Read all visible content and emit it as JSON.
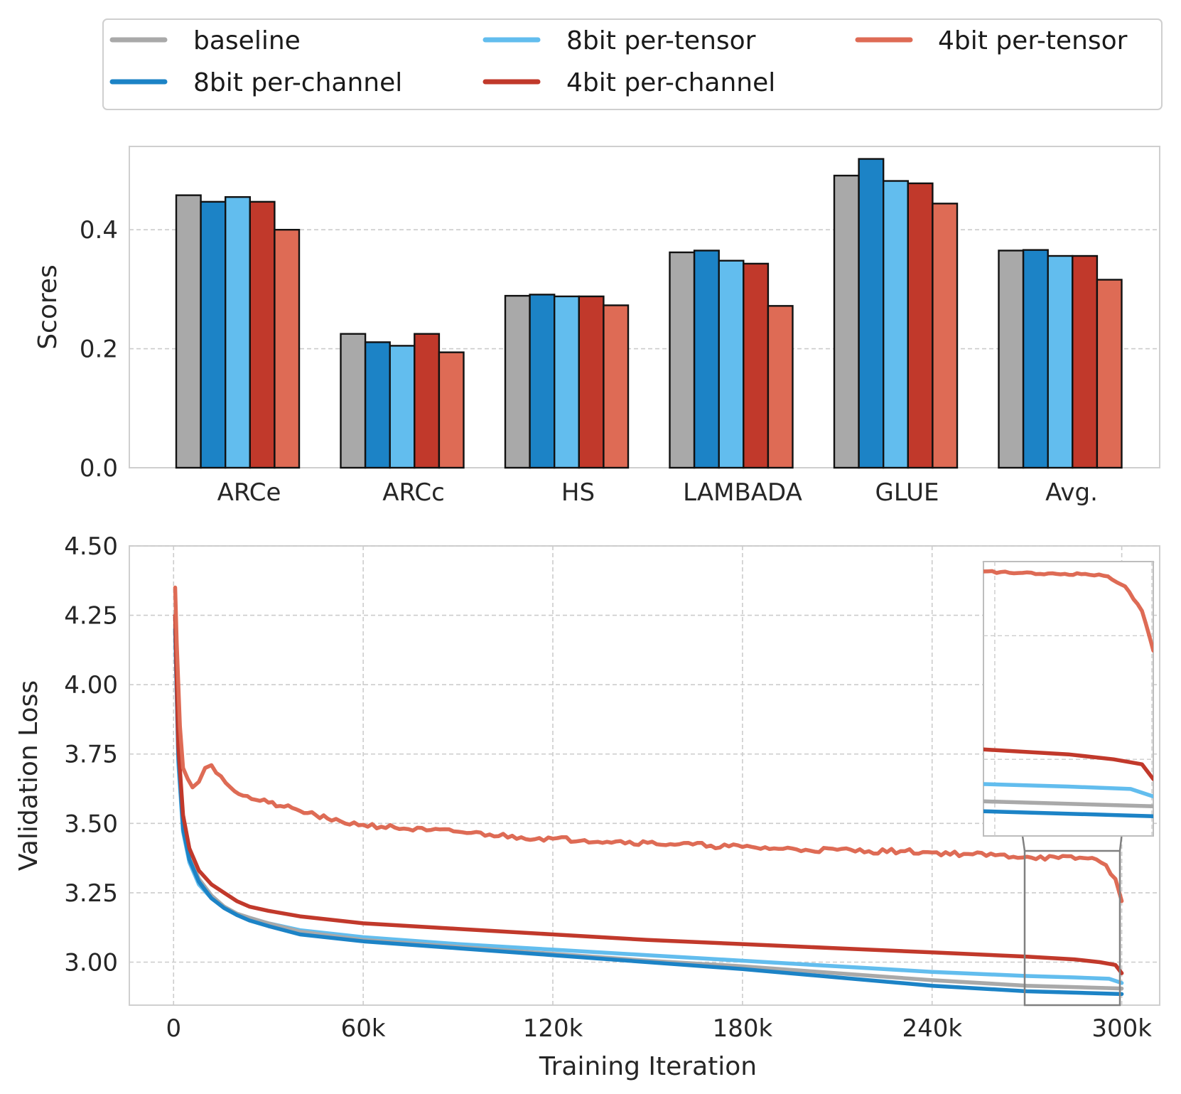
{
  "legend": {
    "items": [
      {
        "label": "baseline",
        "color": "#a9a9a9"
      },
      {
        "label": "8bit per-tensor",
        "color": "#62bdee"
      },
      {
        "label": "4bit per-tensor",
        "color": "#de6b55"
      },
      {
        "label": "8bit per-channel",
        "color": "#1c83c6"
      },
      {
        "label": "4bit per-channel",
        "color": "#c1392b"
      }
    ]
  },
  "chart_data": [
    {
      "type": "bar",
      "ylabel": "Scores",
      "xlabel": "",
      "ylim": [
        0,
        0.54
      ],
      "yticks": [
        "0.0",
        "0.2",
        "0.4"
      ],
      "grid": true,
      "categories": [
        "ARCe",
        "ARCc",
        "HS",
        "LAMBADA",
        "GLUE",
        "Avg."
      ],
      "series": [
        {
          "name": "baseline",
          "color": "#a9a9a9",
          "values": [
            0.458,
            0.225,
            0.289,
            0.362,
            0.491,
            0.365
          ]
        },
        {
          "name": "8bit per-channel",
          "color": "#1c83c6",
          "values": [
            0.447,
            0.211,
            0.291,
            0.365,
            0.519,
            0.366
          ]
        },
        {
          "name": "8bit per-tensor",
          "color": "#62bdee",
          "values": [
            0.455,
            0.205,
            0.288,
            0.348,
            0.482,
            0.356
          ]
        },
        {
          "name": "4bit per-channel",
          "color": "#c1392b",
          "values": [
            0.447,
            0.225,
            0.288,
            0.343,
            0.478,
            0.356
          ]
        },
        {
          "name": "4bit per-tensor",
          "color": "#de6b55",
          "values": [
            0.4,
            0.194,
            0.273,
            0.272,
            0.444,
            0.316
          ]
        }
      ]
    },
    {
      "type": "line",
      "xlabel": "Training Iteration",
      "ylabel": "Validation Loss",
      "xlim": [
        -14000,
        312000
      ],
      "ylim": [
        2.845,
        4.5
      ],
      "xticks": [
        0,
        60000,
        120000,
        180000,
        240000,
        300000
      ],
      "xticklabels": [
        "0",
        "60k",
        "120k",
        "180k",
        "240k",
        "300k"
      ],
      "yticks": [
        3.0,
        3.25,
        3.5,
        3.75,
        4.0,
        4.25,
        4.5
      ],
      "yticklabels": [
        "3.00",
        "3.25",
        "3.50",
        "3.75",
        "4.00",
        "4.25",
        "4.50"
      ],
      "grid": true,
      "series": [
        {
          "name": "baseline",
          "color": "#a9a9a9",
          "x": [
            500,
            1500,
            3000,
            5000,
            8000,
            12000,
            16000,
            20000,
            24000,
            30000,
            40000,
            60000,
            90000,
            120000,
            150000,
            180000,
            210000,
            240000,
            270000,
            285000,
            300000
          ],
          "y": [
            4.2,
            3.75,
            3.5,
            3.38,
            3.3,
            3.24,
            3.2,
            3.175,
            3.16,
            3.14,
            3.11,
            3.08,
            3.055,
            3.03,
            3.005,
            2.985,
            2.96,
            2.935,
            2.915,
            2.91,
            2.905
          ]
        },
        {
          "name": "8bit per-channel",
          "color": "#1c83c6",
          "x": [
            500,
            1500,
            3000,
            5000,
            8000,
            12000,
            16000,
            20000,
            24000,
            30000,
            40000,
            60000,
            90000,
            120000,
            150000,
            180000,
            210000,
            240000,
            270000,
            285000,
            300000
          ],
          "y": [
            4.2,
            3.75,
            3.48,
            3.37,
            3.29,
            3.23,
            3.195,
            3.17,
            3.15,
            3.13,
            3.1,
            3.075,
            3.05,
            3.025,
            3.0,
            2.975,
            2.945,
            2.915,
            2.895,
            2.89,
            2.885
          ]
        },
        {
          "name": "8bit per-tensor",
          "color": "#62bdee",
          "x": [
            500,
            1500,
            3000,
            5000,
            8000,
            12000,
            16000,
            20000,
            24000,
            30000,
            40000,
            60000,
            90000,
            120000,
            150000,
            180000,
            210000,
            240000,
            270000,
            285000,
            296000,
            300000
          ],
          "y": [
            4.2,
            3.72,
            3.47,
            3.36,
            3.28,
            3.23,
            3.2,
            3.17,
            3.155,
            3.14,
            3.115,
            3.09,
            3.065,
            3.045,
            3.025,
            3.005,
            2.985,
            2.965,
            2.95,
            2.945,
            2.94,
            2.925
          ]
        },
        {
          "name": "4bit per-channel",
          "color": "#c1392b",
          "x": [
            500,
            1500,
            3000,
            5000,
            8000,
            12000,
            16000,
            20000,
            24000,
            30000,
            40000,
            60000,
            90000,
            120000,
            150000,
            180000,
            210000,
            240000,
            270000,
            285000,
            293000,
            298000,
            300000
          ],
          "y": [
            4.25,
            3.78,
            3.53,
            3.41,
            3.33,
            3.28,
            3.25,
            3.22,
            3.2,
            3.185,
            3.165,
            3.14,
            3.12,
            3.1,
            3.08,
            3.065,
            3.05,
            3.035,
            3.02,
            3.01,
            3.0,
            2.99,
            2.96
          ]
        },
        {
          "name": "4bit per-tensor",
          "color": "#de6b55",
          "x": [
            500,
            1000,
            2000,
            3000,
            4500,
            6000,
            8000,
            10000,
            12000,
            15000,
            18000,
            22000,
            26000,
            30000,
            35000,
            40000,
            45000,
            50000,
            60000,
            70000,
            80000,
            90000,
            100000,
            110000,
            120000,
            130000,
            140000,
            150000,
            160000,
            170000,
            180000,
            190000,
            200000,
            210000,
            220000,
            230000,
            240000,
            250000,
            260000,
            270000,
            280000,
            288000,
            292000,
            295000,
            298000,
            300000
          ],
          "y": [
            4.35,
            4.15,
            3.85,
            3.7,
            3.66,
            3.63,
            3.65,
            3.7,
            3.71,
            3.67,
            3.63,
            3.6,
            3.585,
            3.575,
            3.56,
            3.545,
            3.53,
            3.51,
            3.495,
            3.485,
            3.475,
            3.47,
            3.46,
            3.45,
            3.445,
            3.44,
            3.435,
            3.43,
            3.425,
            3.42,
            3.415,
            3.41,
            3.405,
            3.405,
            3.4,
            3.4,
            3.395,
            3.39,
            3.385,
            3.38,
            3.375,
            3.375,
            3.37,
            3.35,
            3.3,
            3.22
          ]
        }
      ],
      "inset": {
        "xlim": [
          270000,
          300000
        ],
        "ylim": [
          2.845,
          3.4
        ]
      }
    }
  ]
}
